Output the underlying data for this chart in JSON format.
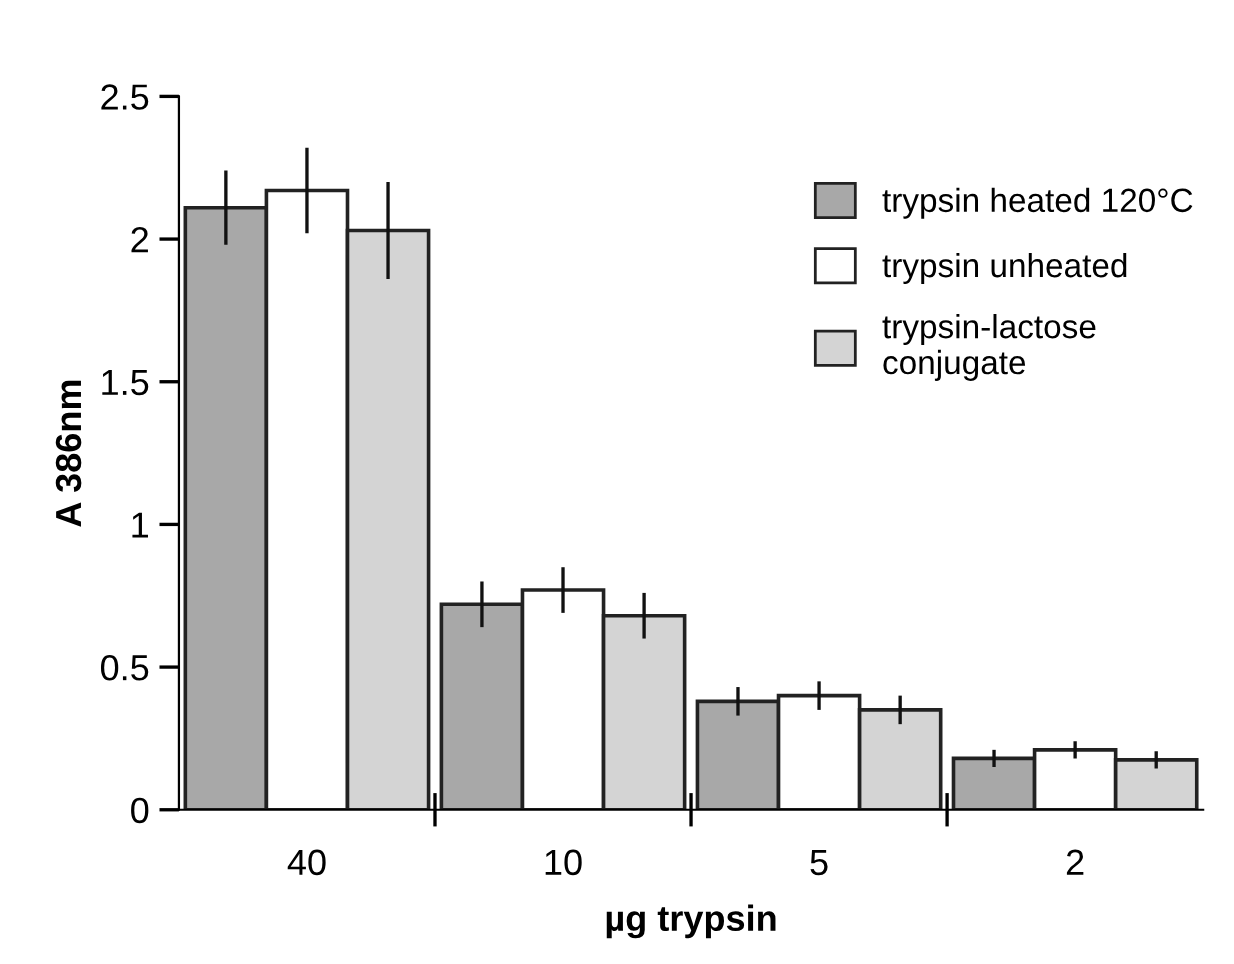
{
  "chart_data": {
    "type": "bar",
    "xlabel": "µg trypsin",
    "ylabel": "A 386nm",
    "categories": [
      "40",
      "10",
      "5",
      "2"
    ],
    "series": [
      {
        "name": "trypsin heated 120°C",
        "color": "#a8a8a8",
        "values": [
          2.11,
          0.72,
          0.38,
          0.18
        ],
        "errors": [
          0.13,
          0.08,
          0.05,
          0.03
        ]
      },
      {
        "name": "trypsin unheated",
        "color": "#ffffff",
        "values": [
          2.17,
          0.77,
          0.4,
          0.21
        ],
        "errors": [
          0.15,
          0.08,
          0.05,
          0.03
        ]
      },
      {
        "name": "trypsin-lactose\nconjugate",
        "color": "#d4d4d4",
        "values": [
          2.03,
          0.68,
          0.35,
          0.175
        ],
        "errors": [
          0.17,
          0.08,
          0.05,
          0.03
        ]
      }
    ],
    "ylim": [
      0,
      2.5
    ],
    "yticks": [
      0,
      0.5,
      1,
      1.5,
      2,
      2.5
    ],
    "grid": false,
    "legend": "top right"
  }
}
